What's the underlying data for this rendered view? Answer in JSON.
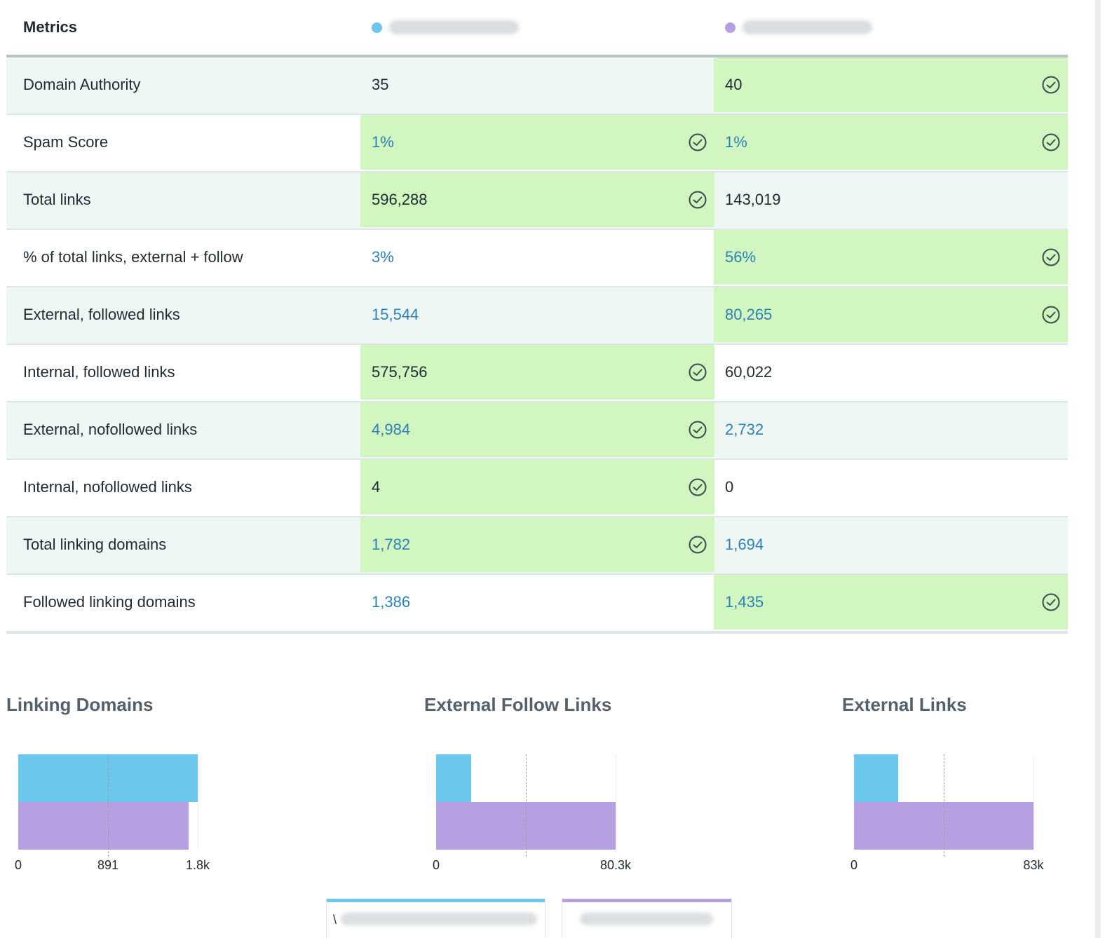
{
  "table": {
    "header_label": "Metrics",
    "sites": [
      {
        "name_blurred": true,
        "color": "#6bc8ec"
      },
      {
        "name_blurred": true,
        "color": "#b6a0e2"
      }
    ],
    "rows": [
      {
        "label": "Domain Authority",
        "v1": "35",
        "v2": "40",
        "win1": false,
        "win2": true,
        "link": false
      },
      {
        "label": "Spam Score",
        "v1": "1%",
        "v2": "1%",
        "win1": true,
        "win2": true,
        "link": true
      },
      {
        "label": "Total links",
        "v1": "596,288",
        "v2": "143,019",
        "win1": true,
        "win2": false,
        "link": false
      },
      {
        "label": "% of total links, external + follow",
        "v1": "3%",
        "v2": "56%",
        "win1": false,
        "win2": true,
        "link": true
      },
      {
        "label": "External, followed links",
        "v1": "15,544",
        "v2": "80,265",
        "win1": false,
        "win2": true,
        "link": true
      },
      {
        "label": "Internal, followed links",
        "v1": "575,756",
        "v2": "60,022",
        "win1": true,
        "win2": false,
        "link": false
      },
      {
        "label": "External, nofollowed links",
        "v1": "4,984",
        "v2": "2,732",
        "win1": true,
        "win2": false,
        "link": true
      },
      {
        "label": "Internal, nofollowed links",
        "v1": "4",
        "v2": "0",
        "win1": true,
        "win2": false,
        "link": false
      },
      {
        "label": "Total linking domains",
        "v1": "1,782",
        "v2": "1,694",
        "win1": true,
        "win2": false,
        "link": true
      },
      {
        "label": "Followed linking domains",
        "v1": "1,386",
        "v2": "1,435",
        "win1": false,
        "win2": true,
        "link": true
      }
    ]
  },
  "colors": {
    "site1": "#6bc8ec",
    "site2": "#b6a0e2",
    "win": "#d2f6bf",
    "link": "#2b82b6"
  },
  "chart_data": [
    {
      "type": "bar",
      "title": "Linking Domains",
      "orientation": "horizontal",
      "values": [
        1782,
        1694
      ],
      "xlim": [
        0,
        1782
      ],
      "tick_labels": [
        "0",
        "891",
        "1.8k"
      ]
    },
    {
      "type": "bar",
      "title": "External Follow Links",
      "orientation": "horizontal",
      "values": [
        15544,
        80265
      ],
      "xlim": [
        0,
        80265
      ],
      "tick_labels": [
        "0",
        "80.3k"
      ]
    },
    {
      "type": "bar",
      "title": "External Links",
      "orientation": "horizontal",
      "values": [
        20528,
        82997
      ],
      "xlim": [
        0,
        82997
      ],
      "tick_labels": [
        "0",
        "83k"
      ]
    }
  ]
}
